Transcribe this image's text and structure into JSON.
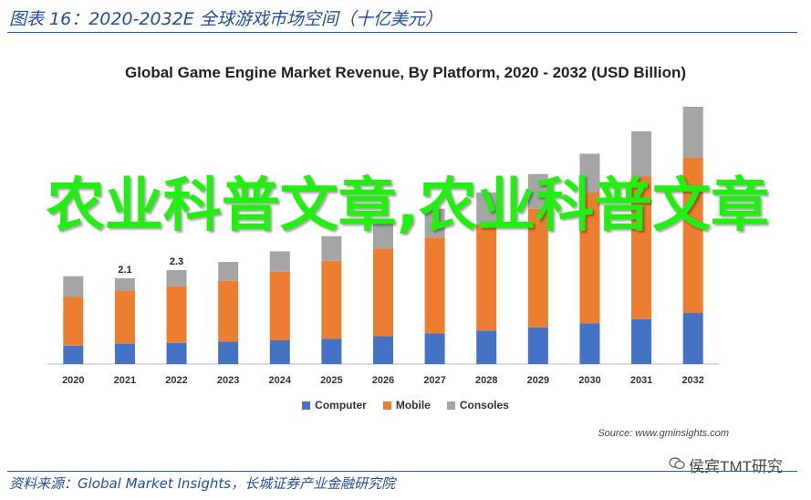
{
  "figure": {
    "title": "图表 16：2020-2032E 全球游戏市场空间（十亿美元）",
    "footer": "资料来源：Global Market Insights，长城证券产业金融研究院"
  },
  "chart_data": {
    "type": "bar",
    "stacked": true,
    "title": "Global Game Engine Market Revenue, By Platform, 2020 - 2032 (USD Billion)",
    "categories": [
      "2020",
      "2021",
      "2022",
      "2023",
      "2024",
      "2025",
      "2026",
      "2027",
      "2028",
      "2029",
      "2030",
      "2031",
      "2032"
    ],
    "series": [
      {
        "name": "Computer",
        "color": "#4472c4",
        "values": [
          0.45,
          0.5,
          0.52,
          0.55,
          0.58,
          0.62,
          0.68,
          0.75,
          0.82,
          0.9,
          1.0,
          1.1,
          1.25
        ]
      },
      {
        "name": "Mobile",
        "color": "#ed7d31",
        "values": [
          1.2,
          1.3,
          1.38,
          1.49,
          1.68,
          1.91,
          2.15,
          2.35,
          2.6,
          2.9,
          3.2,
          3.5,
          3.8
        ]
      },
      {
        "name": "Consoles",
        "color": "#a5a5a5",
        "values": [
          0.5,
          0.3,
          0.4,
          0.46,
          0.5,
          0.6,
          0.65,
          0.7,
          0.78,
          0.85,
          0.95,
          1.1,
          1.25
        ]
      }
    ],
    "data_labels": {
      "2021": "2.1",
      "2022": "2.3"
    },
    "ylim": [
      0,
      6.5
    ],
    "legend_position": "bottom",
    "source": "Source: www.gminsights.com"
  },
  "overlay": {
    "watermark_text": "农业科普文章,农业科普文章",
    "wechat_label": "侯宾TMT研究"
  }
}
